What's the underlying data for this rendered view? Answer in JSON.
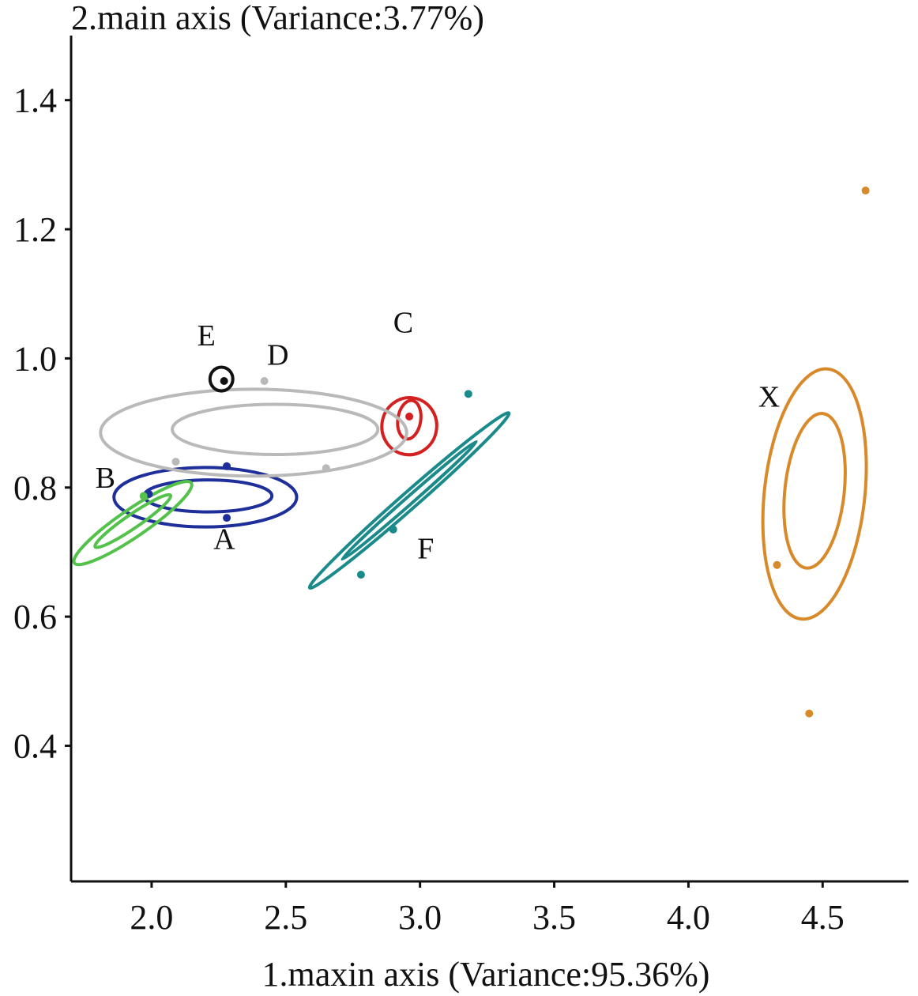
{
  "chart_data": {
    "type": "scatter",
    "xlabel": "1.maxin axis (Variance:95.36%)",
    "ylabel": "2.main axis (Variance:3.77%)",
    "xlim": [
      1.7,
      4.82
    ],
    "ylim": [
      0.19,
      1.5
    ],
    "x_ticks": [
      2.0,
      2.5,
      3.0,
      3.5,
      4.0,
      4.5
    ],
    "x_tick_labels": [
      "2.0",
      "2.5",
      "3.0",
      "3.5",
      "4.0",
      "4.5"
    ],
    "y_ticks": [
      0.4,
      0.6,
      0.8,
      1.0,
      1.2,
      1.4
    ],
    "y_tick_labels": [
      "0.4",
      "0.6",
      "0.8",
      "1.0",
      "1.2",
      "1.4"
    ],
    "grid": false,
    "groups": [
      {
        "name": "A",
        "color": "#1f2f9a",
        "label_pos": [
          2.23,
          0.705
        ],
        "ellipses": [
          {
            "cx": 2.2,
            "cy": 0.785,
            "rx": 0.4,
            "ry": 0.065,
            "angle": 0
          },
          {
            "cx": 2.21,
            "cy": 0.787,
            "rx": 0.28,
            "ry": 0.035,
            "angle": 0
          }
        ],
        "points": [
          [
            2.28,
            0.833
          ],
          [
            2.28,
            0.753
          ],
          [
            1.99,
            0.79
          ]
        ]
      },
      {
        "name": "B",
        "color": "#52c24a",
        "label_pos": [
          1.79,
          0.8
        ],
        "ellipses": [
          {
            "cx": 1.93,
            "cy": 0.745,
            "rx": 0.31,
            "ry": 0.03,
            "angle": 0.6
          },
          {
            "cx": 1.93,
            "cy": 0.748,
            "rx": 0.2,
            "ry": 0.015,
            "angle": 0.6
          }
        ],
        "points": [
          [
            1.97,
            0.787
          ]
        ]
      },
      {
        "name": "C",
        "color": "#d42020",
        "label_pos": [
          2.9,
          1.04
        ],
        "ellipses": [
          {
            "cx": 2.96,
            "cy": 0.895,
            "rx": 0.125,
            "ry": 0.06,
            "angle": 1.42
          },
          {
            "cx": 2.96,
            "cy": 0.905,
            "rx": 0.085,
            "ry": 0.025,
            "angle": 1.42
          }
        ],
        "points": [
          [
            2.96,
            0.91
          ]
        ]
      },
      {
        "name": "D",
        "color": "#b9b9b9",
        "label_pos": [
          2.43,
          0.99
        ],
        "ellipses": [
          {
            "cx": 2.38,
            "cy": 0.885,
            "rx": 0.67,
            "ry": 0.095,
            "angle": 0
          },
          {
            "cx": 2.46,
            "cy": 0.89,
            "rx": 0.45,
            "ry": 0.055,
            "angle": 0
          }
        ],
        "points": [
          [
            2.42,
            0.965
          ],
          [
            2.65,
            0.83
          ],
          [
            2.09,
            0.84
          ]
        ]
      },
      {
        "name": "E",
        "color": "#111111",
        "label_pos": [
          2.17,
          1.02
        ],
        "ellipses": [
          {
            "cx": 2.26,
            "cy": 0.968,
            "rx": 0.05,
            "ry": 0.026,
            "angle": 0
          }
        ],
        "points": [
          [
            2.27,
            0.965
          ]
        ]
      },
      {
        "name": "F",
        "color": "#1a8a8a",
        "label_pos": [
          2.99,
          0.69
        ],
        "ellipses": [
          {
            "cx": 2.96,
            "cy": 0.78,
            "rx": 0.58,
            "ry": 0.018,
            "angle": 0.72
          },
          {
            "cx": 2.96,
            "cy": 0.78,
            "rx": 0.39,
            "ry": 0.008,
            "angle": 0.72
          }
        ],
        "points": [
          [
            3.18,
            0.945
          ],
          [
            2.78,
            0.665
          ],
          [
            2.9,
            0.735
          ]
        ]
      },
      {
        "name": "X",
        "color": "#d8892a",
        "label_pos": [
          4.26,
          0.925
        ],
        "ellipses": [
          {
            "cx": 4.47,
            "cy": 0.79,
            "rx": 0.55,
            "ry": 0.11,
            "angle": 1.464
          },
          {
            "cx": 4.47,
            "cy": 0.795,
            "rx": 0.34,
            "ry": 0.065,
            "angle": 1.464
          }
        ],
        "points": [
          [
            4.66,
            1.26
          ],
          [
            4.33,
            0.68
          ],
          [
            4.45,
            0.45
          ]
        ]
      }
    ]
  }
}
